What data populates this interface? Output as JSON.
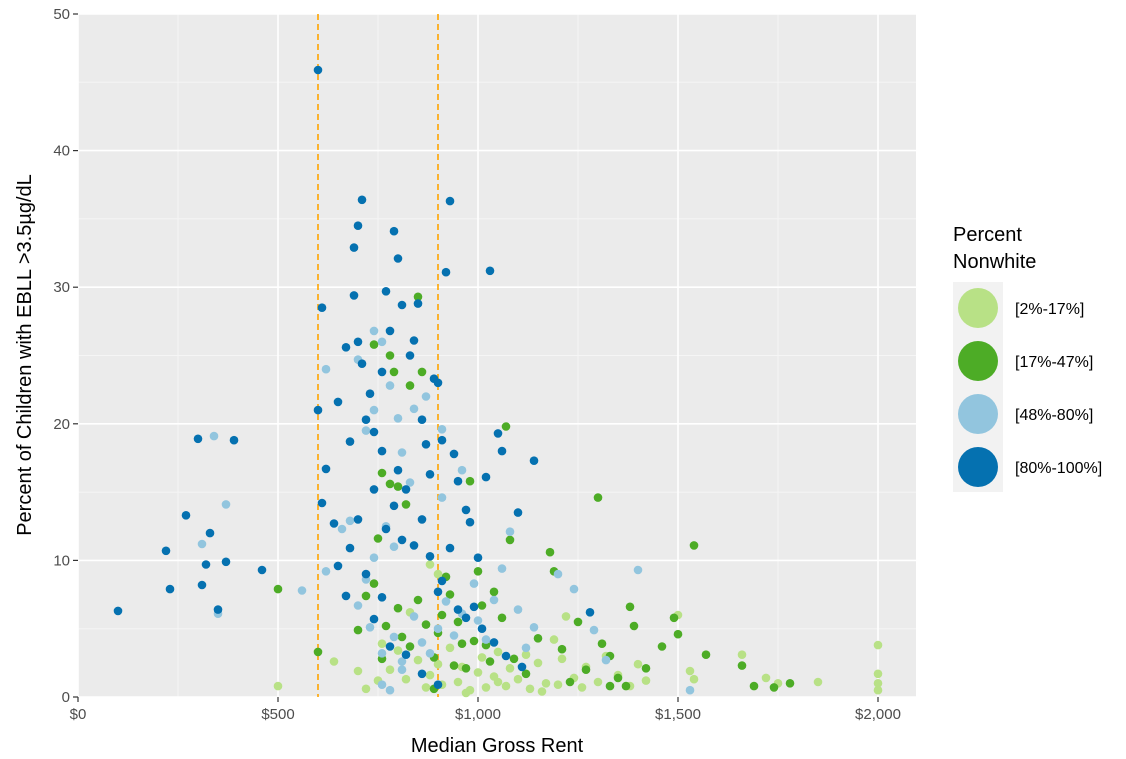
{
  "chart_data": {
    "type": "scatter",
    "title": "",
    "xlabel": "Median Gross Rent",
    "ylabel": "Percent of Children with EBLL >3.5µg/dL",
    "xlim": [
      0,
      2100
    ],
    "ylim": [
      0,
      50
    ],
    "x_ticks": [
      0,
      500,
      1000,
      1500,
      2000
    ],
    "x_tick_labels": [
      "$0",
      "$500",
      "$1,000",
      "$1,500",
      "$2,000"
    ],
    "y_ticks": [
      0,
      10,
      20,
      30,
      40,
      50
    ],
    "y_tick_labels": [
      "0",
      "10",
      "20",
      "30",
      "40",
      "50"
    ],
    "grid": true,
    "reference_lines": [
      {
        "axis": "x",
        "value": 600,
        "color": "#FFA500",
        "style": "dashed"
      },
      {
        "axis": "x",
        "value": 900,
        "color": "#FFA500",
        "style": "dashed"
      }
    ],
    "legend": {
      "title_lines": [
        "Percent",
        "Nonwhite"
      ],
      "placement": "right"
    },
    "series": [
      {
        "name": "[2%-17%]",
        "color": "#B8E186",
        "points": [
          [
            500,
            0.8
          ],
          [
            640,
            2.6
          ],
          [
            700,
            1.9
          ],
          [
            720,
            0.6
          ],
          [
            750,
            1.2
          ],
          [
            780,
            2.0
          ],
          [
            800,
            3.4
          ],
          [
            820,
            1.3
          ],
          [
            850,
            2.7
          ],
          [
            870,
            0.7
          ],
          [
            880,
            1.6
          ],
          [
            900,
            2.4
          ],
          [
            910,
            0.9
          ],
          [
            930,
            3.6
          ],
          [
            950,
            1.1
          ],
          [
            960,
            2.2
          ],
          [
            980,
            0.5
          ],
          [
            1000,
            1.8
          ],
          [
            1010,
            2.9
          ],
          [
            1020,
            0.7
          ],
          [
            1040,
            1.5
          ],
          [
            1050,
            3.3
          ],
          [
            1070,
            0.8
          ],
          [
            1080,
            2.1
          ],
          [
            1100,
            1.3
          ],
          [
            1120,
            3.1
          ],
          [
            1130,
            0.6
          ],
          [
            1150,
            2.5
          ],
          [
            1170,
            1.0
          ],
          [
            1190,
            4.2
          ],
          [
            1200,
            0.9
          ],
          [
            1210,
            2.8
          ],
          [
            1220,
            5.9
          ],
          [
            1240,
            1.4
          ],
          [
            1260,
            0.7
          ],
          [
            1270,
            2.2
          ],
          [
            1300,
            1.1
          ],
          [
            1320,
            3.0
          ],
          [
            1350,
            1.6
          ],
          [
            1380,
            0.8
          ],
          [
            1400,
            2.4
          ],
          [
            1420,
            1.2
          ],
          [
            1500,
            6.0
          ],
          [
            1530,
            1.9
          ],
          [
            1540,
            1.3
          ],
          [
            1660,
            3.1
          ],
          [
            1720,
            1.4
          ],
          [
            1750,
            1.0
          ],
          [
            1850,
            1.1
          ],
          [
            2000,
            3.8
          ],
          [
            2000,
            1.7
          ],
          [
            2000,
            1.0
          ],
          [
            2000,
            0.5
          ],
          [
            880,
            9.7
          ],
          [
            900,
            9.0
          ],
          [
            830,
            6.2
          ],
          [
            760,
            3.9
          ],
          [
            1050,
            1.1
          ],
          [
            1160,
            0.4
          ],
          [
            970,
            0.3
          ]
        ]
      },
      {
        "name": "[17%-47%]",
        "color": "#4DAC26",
        "points": [
          [
            500,
            7.9
          ],
          [
            600,
            3.3
          ],
          [
            740,
            25.8
          ],
          [
            780,
            25.0
          ],
          [
            790,
            23.8
          ],
          [
            850,
            29.3
          ],
          [
            860,
            23.8
          ],
          [
            830,
            22.8
          ],
          [
            760,
            16.4
          ],
          [
            800,
            15.4
          ],
          [
            780,
            15.6
          ],
          [
            820,
            14.1
          ],
          [
            700,
            4.9
          ],
          [
            720,
            7.4
          ],
          [
            740,
            8.3
          ],
          [
            750,
            11.6
          ],
          [
            770,
            5.2
          ],
          [
            760,
            2.8
          ],
          [
            800,
            6.5
          ],
          [
            810,
            4.4
          ],
          [
            830,
            3.7
          ],
          [
            850,
            7.1
          ],
          [
            870,
            5.3
          ],
          [
            890,
            2.9
          ],
          [
            900,
            4.7
          ],
          [
            910,
            6.0
          ],
          [
            920,
            8.8
          ],
          [
            930,
            7.5
          ],
          [
            940,
            2.3
          ],
          [
            950,
            5.5
          ],
          [
            960,
            3.9
          ],
          [
            970,
            2.1
          ],
          [
            990,
            4.1
          ],
          [
            1000,
            9.2
          ],
          [
            1010,
            6.7
          ],
          [
            1020,
            3.8
          ],
          [
            1040,
            7.7
          ],
          [
            1060,
            5.8
          ],
          [
            1070,
            19.8
          ],
          [
            1080,
            11.5
          ],
          [
            1090,
            2.8
          ],
          [
            1120,
            1.7
          ],
          [
            1150,
            4.3
          ],
          [
            1180,
            10.6
          ],
          [
            1190,
            9.2
          ],
          [
            1210,
            3.5
          ],
          [
            1230,
            1.1
          ],
          [
            1250,
            5.5
          ],
          [
            1270,
            2.0
          ],
          [
            1300,
            14.6
          ],
          [
            1310,
            3.9
          ],
          [
            1330,
            3.0
          ],
          [
            1350,
            1.4
          ],
          [
            1370,
            0.8
          ],
          [
            1380,
            6.6
          ],
          [
            1390,
            5.2
          ],
          [
            1420,
            2.1
          ],
          [
            1460,
            3.7
          ],
          [
            1490,
            5.8
          ],
          [
            1500,
            4.6
          ],
          [
            1540,
            11.1
          ],
          [
            1570,
            3.1
          ],
          [
            1660,
            2.3
          ],
          [
            1690,
            0.8
          ],
          [
            1740,
            0.7
          ],
          [
            1780,
            1.0
          ],
          [
            980,
            15.8
          ],
          [
            1030,
            2.6
          ],
          [
            1330,
            0.8
          ],
          [
            890,
            0.6
          ]
        ]
      },
      {
        "name": "[48%-80%]",
        "color": "#92C5DE",
        "points": [
          [
            310,
            11.2
          ],
          [
            340,
            19.1
          ],
          [
            350,
            6.1
          ],
          [
            370,
            14.1
          ],
          [
            560,
            7.8
          ],
          [
            620,
            24.0
          ],
          [
            620,
            9.2
          ],
          [
            660,
            12.3
          ],
          [
            680,
            12.9
          ],
          [
            720,
            19.5
          ],
          [
            740,
            21.0
          ],
          [
            760,
            26.0
          ],
          [
            780,
            22.8
          ],
          [
            800,
            20.4
          ],
          [
            810,
            17.9
          ],
          [
            830,
            15.7
          ],
          [
            770,
            12.5
          ],
          [
            790,
            11.0
          ],
          [
            740,
            10.2
          ],
          [
            720,
            8.6
          ],
          [
            700,
            6.7
          ],
          [
            730,
            5.1
          ],
          [
            760,
            3.2
          ],
          [
            790,
            4.4
          ],
          [
            810,
            2.6
          ],
          [
            840,
            5.9
          ],
          [
            860,
            4.0
          ],
          [
            880,
            3.2
          ],
          [
            900,
            5.0
          ],
          [
            920,
            7.0
          ],
          [
            940,
            4.5
          ],
          [
            960,
            6.1
          ],
          [
            990,
            8.3
          ],
          [
            1000,
            5.6
          ],
          [
            1020,
            4.2
          ],
          [
            1040,
            7.1
          ],
          [
            1060,
            9.4
          ],
          [
            1080,
            12.1
          ],
          [
            1100,
            6.4
          ],
          [
            1120,
            3.6
          ],
          [
            1140,
            5.1
          ],
          [
            1200,
            9.0
          ],
          [
            1240,
            7.9
          ],
          [
            1290,
            4.9
          ],
          [
            1320,
            2.7
          ],
          [
            1400,
            9.3
          ],
          [
            1530,
            0.5
          ],
          [
            960,
            16.6
          ],
          [
            910,
            19.6
          ],
          [
            840,
            21.1
          ],
          [
            700,
            24.7
          ],
          [
            740,
            26.8
          ],
          [
            870,
            22.0
          ],
          [
            910,
            14.6
          ],
          [
            760,
            0.9
          ],
          [
            780,
            0.5
          ],
          [
            810,
            2.0
          ]
        ]
      },
      {
        "name": "[80%-100%]",
        "color": "#0571B0",
        "points": [
          [
            100,
            6.3
          ],
          [
            220,
            10.7
          ],
          [
            230,
            7.9
          ],
          [
            270,
            13.3
          ],
          [
            300,
            18.9
          ],
          [
            310,
            8.2
          ],
          [
            320,
            9.7
          ],
          [
            330,
            12.0
          ],
          [
            350,
            6.4
          ],
          [
            370,
            9.9
          ],
          [
            390,
            18.8
          ],
          [
            460,
            9.3
          ],
          [
            600,
            45.9
          ],
          [
            600,
            21.0
          ],
          [
            610,
            14.2
          ],
          [
            620,
            16.7
          ],
          [
            610,
            28.5
          ],
          [
            640,
            12.7
          ],
          [
            650,
            21.6
          ],
          [
            670,
            25.6
          ],
          [
            680,
            18.7
          ],
          [
            690,
            29.4
          ],
          [
            690,
            32.9
          ],
          [
            700,
            34.5
          ],
          [
            710,
            36.4
          ],
          [
            700,
            26.0
          ],
          [
            710,
            24.4
          ],
          [
            720,
            20.3
          ],
          [
            730,
            22.2
          ],
          [
            740,
            19.4
          ],
          [
            760,
            23.8
          ],
          [
            770,
            29.7
          ],
          [
            780,
            26.8
          ],
          [
            790,
            34.1
          ],
          [
            800,
            32.1
          ],
          [
            810,
            28.7
          ],
          [
            830,
            25.0
          ],
          [
            840,
            26.1
          ],
          [
            850,
            28.8
          ],
          [
            860,
            20.3
          ],
          [
            870,
            18.5
          ],
          [
            880,
            16.3
          ],
          [
            890,
            23.3
          ],
          [
            900,
            23.0
          ],
          [
            910,
            18.8
          ],
          [
            920,
            31.1
          ],
          [
            930,
            36.3
          ],
          [
            940,
            17.8
          ],
          [
            950,
            15.8
          ],
          [
            970,
            13.7
          ],
          [
            980,
            12.8
          ],
          [
            1000,
            10.2
          ],
          [
            1020,
            16.1
          ],
          [
            1030,
            31.2
          ],
          [
            1050,
            19.3
          ],
          [
            1060,
            18.0
          ],
          [
            1100,
            13.5
          ],
          [
            1140,
            17.3
          ],
          [
            1280,
            6.2
          ],
          [
            650,
            9.6
          ],
          [
            670,
            7.4
          ],
          [
            680,
            10.9
          ],
          [
            700,
            13.0
          ],
          [
            720,
            9.0
          ],
          [
            740,
            15.2
          ],
          [
            760,
            18.0
          ],
          [
            770,
            12.3
          ],
          [
            790,
            14.0
          ],
          [
            800,
            16.6
          ],
          [
            810,
            11.5
          ],
          [
            820,
            15.2
          ],
          [
            840,
            11.1
          ],
          [
            860,
            13.0
          ],
          [
            880,
            10.3
          ],
          [
            900,
            7.7
          ],
          [
            910,
            8.5
          ],
          [
            930,
            10.9
          ],
          [
            950,
            6.4
          ],
          [
            970,
            5.8
          ],
          [
            990,
            6.6
          ],
          [
            1010,
            5.0
          ],
          [
            1040,
            4.0
          ],
          [
            1070,
            3.0
          ],
          [
            1110,
            2.2
          ],
          [
            780,
            3.7
          ],
          [
            820,
            3.1
          ],
          [
            860,
            1.7
          ],
          [
            900,
            0.9
          ],
          [
            760,
            7.3
          ],
          [
            740,
            5.7
          ]
        ]
      }
    ]
  }
}
